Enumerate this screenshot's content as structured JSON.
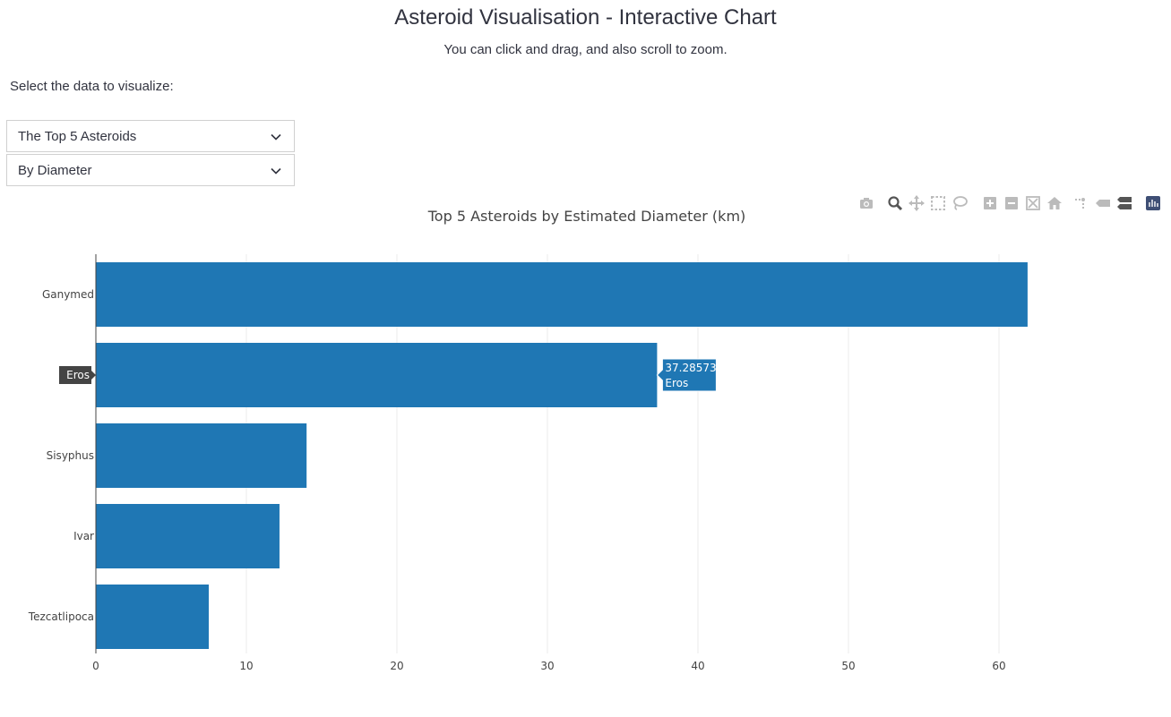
{
  "header": {
    "title": "Asteroid Visualisation - Interactive Chart",
    "subtitle": "You can click and drag, and also scroll to zoom."
  },
  "controls": {
    "label": "Select the data to visualize:",
    "dataset_select": {
      "value": "The Top 5 Asteroids"
    },
    "metric_select": {
      "value": "By Diameter"
    }
  },
  "modebar": {
    "buttons": [
      "camera-icon",
      "zoom-icon",
      "pan-icon",
      "box-select-icon",
      "lasso-select-icon",
      "zoom-in-icon",
      "zoom-out-icon",
      "autoscale-icon",
      "reset-axes-icon",
      "spike-lines-icon",
      "hover-closest-icon",
      "hover-compare-icon",
      "plotly-logo-icon"
    ]
  },
  "chart_data": {
    "type": "bar",
    "orientation": "horizontal",
    "title": "Top 5 Asteroids by Estimated Diameter (km)",
    "categories": [
      "Ganymed",
      "Eros",
      "Sisyphus",
      "Ivar",
      "Tezcatlipoca"
    ],
    "values": [
      61.9,
      37.28573,
      14.0,
      12.2,
      7.5
    ],
    "xlim": [
      0,
      69
    ],
    "xticks": [
      0,
      10,
      20,
      30,
      40,
      50,
      60
    ],
    "grid": true,
    "bar_color": "#1f77b4",
    "hover": {
      "category": "Eros",
      "value_label": "37.28573",
      "name_label": "Eros"
    }
  }
}
